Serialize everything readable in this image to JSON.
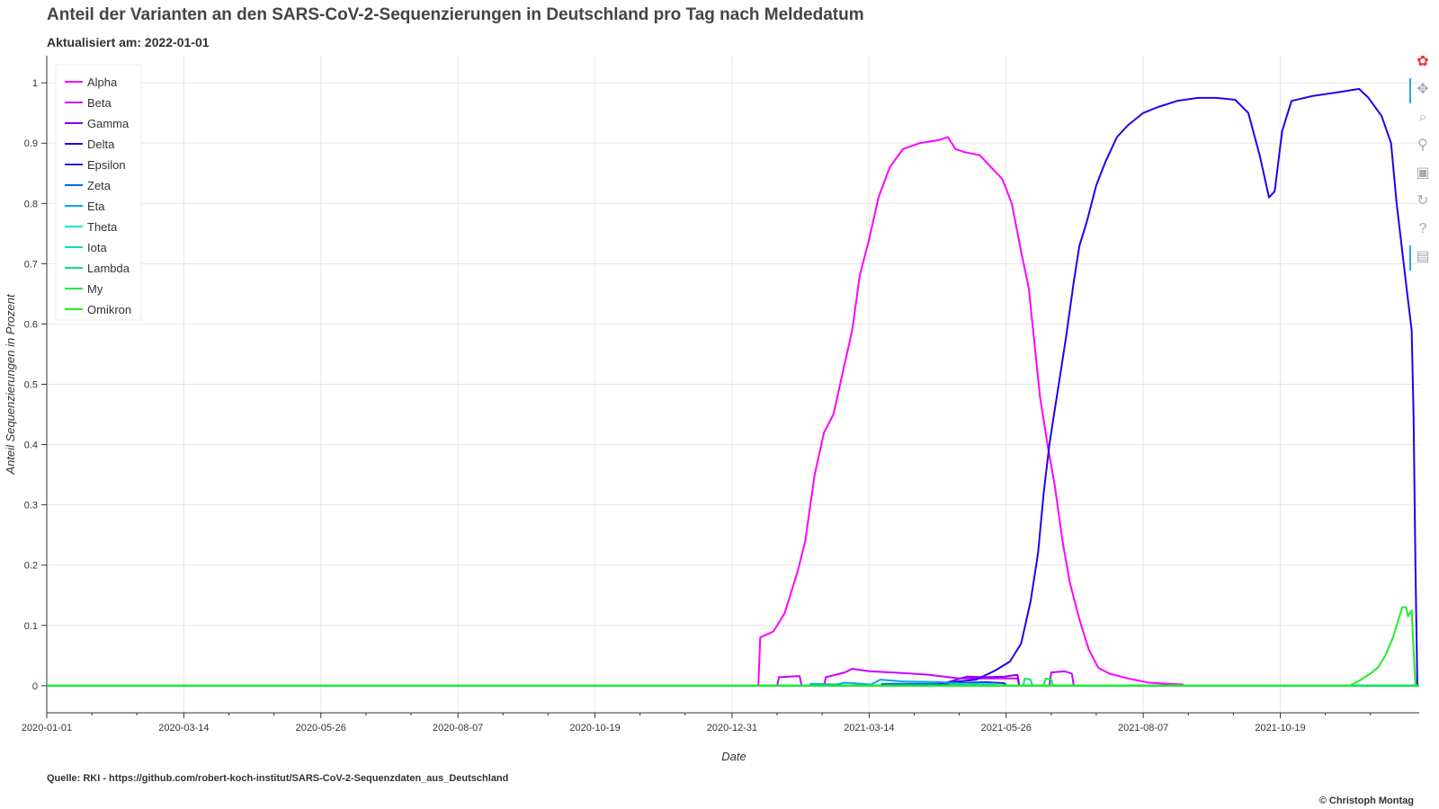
{
  "title": "Anteil der Varianten an den SARS-CoV-2-Sequenzierungen in Deutschland pro Tag nach Meldedatum",
  "subtitle": "Aktualisiert am: 2022-01-01",
  "source": "Quelle: RKI - https://github.com/robert-koch-institut/SARS-CoV-2-Sequenzdaten_aus_Deutschland",
  "copyright": "© Christoph Montag",
  "toolbar": [
    {
      "name": "bokeh-logo-icon",
      "glyph": "✿"
    },
    {
      "name": "pan-tool-icon",
      "glyph": "✥"
    },
    {
      "name": "box-zoom-tool-icon",
      "glyph": "⌕"
    },
    {
      "name": "wheel-zoom-tool-icon",
      "glyph": "⚲"
    },
    {
      "name": "save-tool-icon",
      "glyph": "▣"
    },
    {
      "name": "reset-tool-icon",
      "glyph": "↻"
    },
    {
      "name": "help-tool-icon",
      "glyph": "?"
    },
    {
      "name": "hover-tool-icon",
      "glyph": "▤"
    }
  ],
  "chart_data": {
    "type": "line",
    "xlabel": "Date",
    "ylabel": "Anteil Sequenzierungen in Prozent",
    "x_type": "date",
    "xlim": [
      "2020-01-01",
      "2022-01-01"
    ],
    "ylim": [
      -0.045,
      1.045
    ],
    "x_ticks": [
      "2020-01-01",
      "2020-03-14",
      "2020-05-26",
      "2020-08-07",
      "2020-10-19",
      "2020-12-31",
      "2021-03-14",
      "2021-05-26",
      "2021-08-07",
      "2021-10-19"
    ],
    "y_ticks": [
      0,
      0.1,
      0.2,
      0.3,
      0.4,
      0.5,
      0.6,
      0.7,
      0.8,
      0.9,
      1
    ],
    "y_tick_labels": [
      "0",
      "0.1",
      "0.2",
      "0.3",
      "0.4",
      "0.5",
      "0.6",
      "0.7",
      "0.8",
      "0.9",
      "1"
    ],
    "grid": true,
    "legend_position": "top-left",
    "series": [
      {
        "name": "Alpha",
        "color": "#ff00ff",
        "points": [
          [
            "2020-01-01",
            0
          ],
          [
            "2021-01-14",
            0
          ],
          [
            "2021-01-15",
            0.08
          ],
          [
            "2021-01-22",
            0.09
          ],
          [
            "2021-01-28",
            0.12
          ],
          [
            "2021-02-04",
            0.19
          ],
          [
            "2021-02-08",
            0.24
          ],
          [
            "2021-02-13",
            0.35
          ],
          [
            "2021-02-18",
            0.42
          ],
          [
            "2021-02-23",
            0.45
          ],
          [
            "2021-02-28",
            0.52
          ],
          [
            "2021-03-05",
            0.59
          ],
          [
            "2021-03-09",
            0.68
          ],
          [
            "2021-03-14",
            0.74
          ],
          [
            "2021-03-19",
            0.81
          ],
          [
            "2021-03-25",
            0.86
          ],
          [
            "2021-04-01",
            0.89
          ],
          [
            "2021-04-10",
            0.9
          ],
          [
            "2021-04-20",
            0.905
          ],
          [
            "2021-04-25",
            0.91
          ],
          [
            "2021-04-29",
            0.89
          ],
          [
            "2021-05-04",
            0.885
          ],
          [
            "2021-05-12",
            0.88
          ],
          [
            "2021-05-18",
            0.86
          ],
          [
            "2021-05-24",
            0.84
          ],
          [
            "2021-05-29",
            0.8
          ],
          [
            "2021-06-03",
            0.72
          ],
          [
            "2021-06-07",
            0.66
          ],
          [
            "2021-06-10",
            0.57
          ],
          [
            "2021-06-13",
            0.48
          ],
          [
            "2021-06-17",
            0.4
          ],
          [
            "2021-06-21",
            0.33
          ],
          [
            "2021-06-25",
            0.24
          ],
          [
            "2021-06-29",
            0.17
          ],
          [
            "2021-07-04",
            0.11
          ],
          [
            "2021-07-09",
            0.06
          ],
          [
            "2021-07-14",
            0.03
          ],
          [
            "2021-07-20",
            0.02
          ],
          [
            "2021-07-30",
            0.012
          ],
          [
            "2021-08-10",
            0.005
          ],
          [
            "2021-08-20",
            0.003
          ],
          [
            "2021-08-28",
            0.002
          ],
          [
            "2021-08-29",
            0
          ],
          [
            "2022-01-01",
            0
          ]
        ]
      },
      {
        "name": "Beta",
        "color": "#cc00ff",
        "points": [
          [
            "2020-01-01",
            0
          ],
          [
            "2021-01-24",
            0
          ],
          [
            "2021-01-25",
            0.014
          ],
          [
            "2021-02-05",
            0.016
          ],
          [
            "2021-02-06",
            0
          ],
          [
            "2021-02-18",
            0
          ],
          [
            "2021-02-19",
            0.014
          ],
          [
            "2021-03-01",
            0.022
          ],
          [
            "2021-03-05",
            0.028
          ],
          [
            "2021-03-14",
            0.024
          ],
          [
            "2021-04-01",
            0.021
          ],
          [
            "2021-04-15",
            0.018
          ],
          [
            "2021-05-01",
            0.012
          ],
          [
            "2021-05-20",
            0.012
          ],
          [
            "2021-06-01",
            0.012
          ],
          [
            "2021-06-02",
            0
          ],
          [
            "2021-06-18",
            0
          ],
          [
            "2021-06-19",
            0.022
          ],
          [
            "2021-06-26",
            0.024
          ],
          [
            "2021-06-30",
            0.02
          ],
          [
            "2021-07-01",
            0
          ],
          [
            "2022-01-01",
            0
          ]
        ]
      },
      {
        "name": "Gamma",
        "color": "#8800ff",
        "points": [
          [
            "2020-01-01",
            0
          ],
          [
            "2021-04-15",
            0
          ],
          [
            "2021-04-25",
            0.006
          ],
          [
            "2021-05-05",
            0.015
          ],
          [
            "2021-05-15",
            0.014
          ],
          [
            "2021-05-25",
            0.015
          ],
          [
            "2021-06-01",
            0.018
          ],
          [
            "2021-06-02",
            0
          ],
          [
            "2022-01-01",
            0
          ]
        ]
      },
      {
        "name": "Delta",
        "color": "#2200ee",
        "points": [
          [
            "2020-01-01",
            0
          ],
          [
            "2021-04-10",
            0
          ],
          [
            "2021-05-10",
            0.01
          ],
          [
            "2021-05-20",
            0.025
          ],
          [
            "2021-05-28",
            0.04
          ],
          [
            "2021-06-03",
            0.07
          ],
          [
            "2021-06-08",
            0.14
          ],
          [
            "2021-06-12",
            0.22
          ],
          [
            "2021-06-15",
            0.32
          ],
          [
            "2021-06-18",
            0.4
          ],
          [
            "2021-06-21",
            0.46
          ],
          [
            "2021-06-24",
            0.52
          ],
          [
            "2021-06-27",
            0.58
          ],
          [
            "2021-07-01",
            0.67
          ],
          [
            "2021-07-04",
            0.73
          ],
          [
            "2021-07-08",
            0.77
          ],
          [
            "2021-07-13",
            0.83
          ],
          [
            "2021-07-18",
            0.87
          ],
          [
            "2021-07-24",
            0.91
          ],
          [
            "2021-07-30",
            0.93
          ],
          [
            "2021-08-07",
            0.95
          ],
          [
            "2021-08-15",
            0.96
          ],
          [
            "2021-08-25",
            0.97
          ],
          [
            "2021-09-05",
            0.975
          ],
          [
            "2021-09-15",
            0.975
          ],
          [
            "2021-09-25",
            0.972
          ],
          [
            "2021-10-02",
            0.95
          ],
          [
            "2021-10-08",
            0.88
          ],
          [
            "2021-10-13",
            0.81
          ],
          [
            "2021-10-16",
            0.82
          ],
          [
            "2021-10-20",
            0.92
          ],
          [
            "2021-10-25",
            0.97
          ],
          [
            "2021-11-05",
            0.978
          ],
          [
            "2021-11-20",
            0.985
          ],
          [
            "2021-11-30",
            0.99
          ],
          [
            "2021-12-05",
            0.975
          ],
          [
            "2021-12-12",
            0.945
          ],
          [
            "2021-12-17",
            0.9
          ],
          [
            "2021-12-20",
            0.8
          ],
          [
            "2021-12-23",
            0.72
          ],
          [
            "2021-12-26",
            0.64
          ],
          [
            "2021-12-28",
            0.59
          ],
          [
            "2021-12-29",
            0.45
          ],
          [
            "2021-12-30",
            0.2
          ],
          [
            "2021-12-31",
            0
          ],
          [
            "2022-01-01",
            0
          ]
        ]
      },
      {
        "name": "Epsilon",
        "color": "#1f1fea",
        "points": [
          [
            "2020-01-01",
            0
          ],
          [
            "2021-04-20",
            0
          ],
          [
            "2021-05-01",
            0.004
          ],
          [
            "2021-05-15",
            0.006
          ],
          [
            "2021-05-25",
            0.004
          ],
          [
            "2021-05-26",
            0
          ],
          [
            "2022-01-01",
            0
          ]
        ]
      },
      {
        "name": "Zeta",
        "color": "#0066ee",
        "points": [
          [
            "2020-01-01",
            0
          ],
          [
            "2021-03-20",
            0
          ],
          [
            "2021-03-21",
            0.003
          ],
          [
            "2021-04-20",
            0.003
          ],
          [
            "2021-04-21",
            0
          ],
          [
            "2022-01-01",
            0
          ]
        ]
      },
      {
        "name": "Eta",
        "color": "#00a6ee",
        "points": [
          [
            "2020-01-01",
            0
          ],
          [
            "2021-02-10",
            0
          ],
          [
            "2021-02-11",
            0.003
          ],
          [
            "2021-02-25",
            0.002
          ],
          [
            "2021-03-01",
            0.005
          ],
          [
            "2021-03-15",
            0.002
          ],
          [
            "2021-03-20",
            0.01
          ],
          [
            "2021-04-01",
            0.007
          ],
          [
            "2021-04-20",
            0.006
          ],
          [
            "2021-05-01",
            0.004
          ],
          [
            "2021-05-02",
            0
          ],
          [
            "2022-01-01",
            0
          ]
        ]
      },
      {
        "name": "Theta",
        "color": "#00e5e5",
        "points": [
          [
            "2020-01-01",
            0
          ],
          [
            "2021-05-01",
            0
          ],
          [
            "2021-05-02",
            0.003
          ],
          [
            "2021-05-20",
            0.003
          ],
          [
            "2021-05-21",
            0
          ],
          [
            "2022-01-01",
            0
          ]
        ]
      },
      {
        "name": "Iota",
        "color": "#00e0b0",
        "points": [
          [
            "2020-01-01",
            0
          ],
          [
            "2021-04-25",
            0
          ],
          [
            "2021-04-26",
            0.002
          ],
          [
            "2021-05-10",
            0.002
          ],
          [
            "2021-05-11",
            0
          ],
          [
            "2022-01-01",
            0
          ]
        ]
      },
      {
        "name": "Lambda",
        "color": "#00e676",
        "points": [
          [
            "2020-01-01",
            0
          ],
          [
            "2021-06-04",
            0
          ],
          [
            "2021-06-05",
            0.012
          ],
          [
            "2021-06-08",
            0.01
          ],
          [
            "2021-06-09",
            0
          ],
          [
            "2022-01-01",
            0
          ]
        ]
      },
      {
        "name": "My",
        "color": "#00f040",
        "points": [
          [
            "2020-01-01",
            0
          ],
          [
            "2021-06-15",
            0
          ],
          [
            "2021-06-16",
            0.012
          ],
          [
            "2021-06-19",
            0.01
          ],
          [
            "2021-06-20",
            0
          ],
          [
            "2022-01-01",
            0
          ]
        ]
      },
      {
        "name": "Omikron",
        "color": "#22ee22",
        "points": [
          [
            "2020-01-01",
            0
          ],
          [
            "2021-11-25",
            0
          ],
          [
            "2021-12-01",
            0.01
          ],
          [
            "2021-12-06",
            0.02
          ],
          [
            "2021-12-10",
            0.03
          ],
          [
            "2021-12-14",
            0.05
          ],
          [
            "2021-12-18",
            0.08
          ],
          [
            "2021-12-20",
            0.1
          ],
          [
            "2021-12-23",
            0.13
          ],
          [
            "2021-12-25",
            0.13
          ],
          [
            "2021-12-26",
            0.115
          ],
          [
            "2021-12-28",
            0.125
          ],
          [
            "2021-12-29",
            0.06
          ],
          [
            "2021-12-30",
            0
          ],
          [
            "2022-01-01",
            0
          ]
        ]
      }
    ]
  }
}
